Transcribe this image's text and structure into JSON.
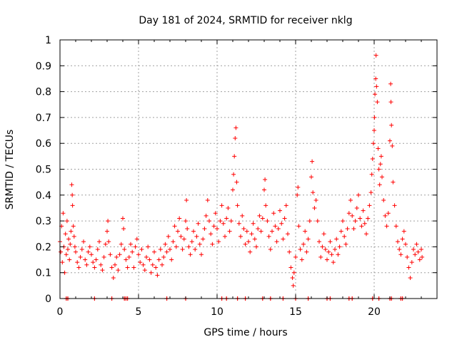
{
  "chart_data": {
    "type": "scatter",
    "title": "Day 181 of 2024, SRMTID for receiver nklg",
    "xlabel": "GPS time / hours",
    "ylabel": "SRMTID / TECUs",
    "xlim": [
      0,
      24
    ],
    "ylim": [
      0,
      1
    ],
    "xticks": [
      0,
      5,
      10,
      15,
      20
    ],
    "xtick_labels": [
      "0",
      "5",
      "10",
      "15",
      "20"
    ],
    "yticks": [
      0,
      0.1,
      0.2,
      0.3,
      0.4,
      0.5,
      0.6,
      0.7,
      0.8,
      0.9,
      1
    ],
    "ytick_labels": [
      "0",
      "0.1",
      "0.2",
      "0.3",
      "0.4",
      "0.5",
      "0.6",
      "0.7",
      "0.8",
      "0.9",
      "1"
    ],
    "grid": true,
    "marker": "+",
    "color": "#ff0000",
    "series": [
      {
        "name": "SRMTID",
        "points": [
          [
            0.0,
            0.22
          ],
          [
            0.05,
            0.18
          ],
          [
            0.1,
            0.28
          ],
          [
            0.15,
            0.14
          ],
          [
            0.2,
            0.33
          ],
          [
            0.25,
            0.2
          ],
          [
            0.3,
            0.1
          ],
          [
            0.35,
            0.25
          ],
          [
            0.4,
            0.17
          ],
          [
            0.45,
            0.3
          ],
          [
            0.5,
            0.19
          ],
          [
            0.55,
            0.23
          ],
          [
            0.6,
            0.15
          ],
          [
            0.65,
            0.21
          ],
          [
            0.7,
            0.26
          ],
          [
            0.75,
            0.44
          ],
          [
            0.78,
            0.4
          ],
          [
            0.8,
            0.36
          ],
          [
            0.85,
            0.28
          ],
          [
            0.9,
            0.24
          ],
          [
            0.95,
            0.2
          ],
          [
            1.0,
            0.18
          ],
          [
            1.1,
            0.14
          ],
          [
            1.2,
            0.12
          ],
          [
            1.3,
            0.16
          ],
          [
            1.4,
            0.19
          ],
          [
            1.5,
            0.22
          ],
          [
            1.6,
            0.15
          ],
          [
            1.7,
            0.13
          ],
          [
            1.8,
            0.18
          ],
          [
            1.9,
            0.2
          ],
          [
            2.0,
            0.17
          ],
          [
            2.1,
            0.14
          ],
          [
            2.2,
            0.12
          ],
          [
            2.3,
            0.15
          ],
          [
            2.4,
            0.19
          ],
          [
            2.5,
            0.22
          ],
          [
            2.6,
            0.13
          ],
          [
            2.7,
            0.11
          ],
          [
            2.8,
            0.16
          ],
          [
            2.9,
            0.21
          ],
          [
            3.0,
            0.26
          ],
          [
            3.05,
            0.3
          ],
          [
            3.1,
            0.22
          ],
          [
            3.2,
            0.17
          ],
          [
            3.3,
            0.12
          ],
          [
            3.4,
            0.08
          ],
          [
            3.5,
            0.13
          ],
          [
            3.6,
            0.16
          ],
          [
            3.7,
            0.11
          ],
          [
            3.8,
            0.17
          ],
          [
            3.9,
            0.21
          ],
          [
            4.0,
            0.31
          ],
          [
            4.05,
            0.27
          ],
          [
            4.1,
            0.19
          ],
          [
            4.2,
            0.15
          ],
          [
            4.3,
            0.12
          ],
          [
            4.4,
            0.16
          ],
          [
            4.5,
            0.21
          ],
          [
            4.6,
            0.18
          ],
          [
            4.7,
            0.12
          ],
          [
            4.8,
            0.2
          ],
          [
            4.9,
            0.23
          ],
          [
            5.0,
            0.17
          ],
          [
            5.1,
            0.14
          ],
          [
            5.2,
            0.19
          ],
          [
            5.3,
            0.13
          ],
          [
            5.4,
            0.11
          ],
          [
            5.5,
            0.16
          ],
          [
            5.6,
            0.2
          ],
          [
            5.7,
            0.15
          ],
          [
            5.8,
            0.1
          ],
          [
            5.9,
            0.13
          ],
          [
            6.0,
            0.18
          ],
          [
            6.1,
            0.12
          ],
          [
            6.2,
            0.09
          ],
          [
            6.3,
            0.15
          ],
          [
            6.4,
            0.19
          ],
          [
            6.5,
            0.13
          ],
          [
            6.6,
            0.16
          ],
          [
            6.7,
            0.21
          ],
          [
            6.8,
            0.18
          ],
          [
            6.9,
            0.24
          ],
          [
            7.0,
            0.19
          ],
          [
            7.1,
            0.15
          ],
          [
            7.2,
            0.22
          ],
          [
            7.3,
            0.28
          ],
          [
            7.4,
            0.2
          ],
          [
            7.5,
            0.26
          ],
          [
            7.6,
            0.31
          ],
          [
            7.7,
            0.24
          ],
          [
            7.8,
            0.19
          ],
          [
            7.9,
            0.23
          ],
          [
            8.0,
            0.3
          ],
          [
            8.05,
            0.38
          ],
          [
            8.1,
            0.27
          ],
          [
            8.2,
            0.2
          ],
          [
            8.3,
            0.17
          ],
          [
            8.4,
            0.22
          ],
          [
            8.5,
            0.26
          ],
          [
            8.6,
            0.19
          ],
          [
            8.7,
            0.24
          ],
          [
            8.8,
            0.29
          ],
          [
            8.9,
            0.21
          ],
          [
            9.0,
            0.17
          ],
          [
            9.1,
            0.23
          ],
          [
            9.2,
            0.27
          ],
          [
            9.3,
            0.32
          ],
          [
            9.4,
            0.38
          ],
          [
            9.5,
            0.3
          ],
          [
            9.6,
            0.25
          ],
          [
            9.7,
            0.21
          ],
          [
            9.8,
            0.28
          ],
          [
            9.9,
            0.33
          ],
          [
            10.0,
            0.27
          ],
          [
            10.1,
            0.22
          ],
          [
            10.2,
            0.3
          ],
          [
            10.3,
            0.36
          ],
          [
            10.4,
            0.29
          ],
          [
            10.5,
            0.24
          ],
          [
            10.6,
            0.31
          ],
          [
            10.7,
            0.35
          ],
          [
            10.8,
            0.26
          ],
          [
            10.9,
            0.3
          ],
          [
            11.0,
            0.42
          ],
          [
            11.05,
            0.48
          ],
          [
            11.1,
            0.55
          ],
          [
            11.15,
            0.62
          ],
          [
            11.2,
            0.66
          ],
          [
            11.25,
            0.45
          ],
          [
            11.3,
            0.36
          ],
          [
            11.4,
            0.29
          ],
          [
            11.5,
            0.24
          ],
          [
            11.6,
            0.32
          ],
          [
            11.7,
            0.27
          ],
          [
            11.8,
            0.21
          ],
          [
            11.9,
            0.26
          ],
          [
            12.0,
            0.22
          ],
          [
            12.1,
            0.18
          ],
          [
            12.2,
            0.25
          ],
          [
            12.3,
            0.29
          ],
          [
            12.4,
            0.23
          ],
          [
            12.5,
            0.2
          ],
          [
            12.6,
            0.27
          ],
          [
            12.7,
            0.32
          ],
          [
            12.8,
            0.26
          ],
          [
            12.9,
            0.31
          ],
          [
            13.0,
            0.42
          ],
          [
            13.05,
            0.46
          ],
          [
            13.1,
            0.36
          ],
          [
            13.2,
            0.3
          ],
          [
            13.3,
            0.24
          ],
          [
            13.4,
            0.19
          ],
          [
            13.5,
            0.26
          ],
          [
            13.6,
            0.33
          ],
          [
            13.7,
            0.28
          ],
          [
            13.8,
            0.22
          ],
          [
            13.9,
            0.27
          ],
          [
            14.0,
            0.34
          ],
          [
            14.1,
            0.29
          ],
          [
            14.2,
            0.23
          ],
          [
            14.3,
            0.31
          ],
          [
            14.4,
            0.36
          ],
          [
            14.5,
            0.25
          ],
          [
            14.6,
            0.18
          ],
          [
            14.7,
            0.12
          ],
          [
            14.8,
            0.08
          ],
          [
            14.85,
            0.05
          ],
          [
            14.9,
            0.1
          ],
          [
            15.0,
            0.16
          ],
          [
            15.1,
            0.4
          ],
          [
            15.15,
            0.43
          ],
          [
            15.2,
            0.28
          ],
          [
            15.3,
            0.19
          ],
          [
            15.4,
            0.15
          ],
          [
            15.5,
            0.21
          ],
          [
            15.6,
            0.26
          ],
          [
            15.7,
            0.18
          ],
          [
            15.8,
            0.23
          ],
          [
            15.9,
            0.3
          ],
          [
            16.0,
            0.47
          ],
          [
            16.05,
            0.53
          ],
          [
            16.1,
            0.41
          ],
          [
            16.2,
            0.35
          ],
          [
            16.3,
            0.38
          ],
          [
            16.4,
            0.3
          ],
          [
            16.5,
            0.22
          ],
          [
            16.6,
            0.16
          ],
          [
            16.7,
            0.2
          ],
          [
            16.8,
            0.25
          ],
          [
            16.9,
            0.19
          ],
          [
            17.0,
            0.15
          ],
          [
            17.1,
            0.18
          ],
          [
            17.2,
            0.22
          ],
          [
            17.3,
            0.17
          ],
          [
            17.4,
            0.14
          ],
          [
            17.5,
            0.19
          ],
          [
            17.6,
            0.23
          ],
          [
            17.7,
            0.17
          ],
          [
            17.8,
            0.2
          ],
          [
            17.9,
            0.26
          ],
          [
            18.0,
            0.3
          ],
          [
            18.1,
            0.24
          ],
          [
            18.2,
            0.21
          ],
          [
            18.3,
            0.27
          ],
          [
            18.4,
            0.33
          ],
          [
            18.5,
            0.38
          ],
          [
            18.6,
            0.32
          ],
          [
            18.7,
            0.27
          ],
          [
            18.8,
            0.3
          ],
          [
            18.9,
            0.35
          ],
          [
            19.0,
            0.4
          ],
          [
            19.1,
            0.31
          ],
          [
            19.2,
            0.28
          ],
          [
            19.3,
            0.34
          ],
          [
            19.4,
            0.29
          ],
          [
            19.5,
            0.25
          ],
          [
            19.6,
            0.31
          ],
          [
            19.7,
            0.36
          ],
          [
            19.8,
            0.41
          ],
          [
            19.85,
            0.48
          ],
          [
            19.9,
            0.54
          ],
          [
            19.95,
            0.6
          ],
          [
            20.0,
            0.65
          ],
          [
            20.02,
            0.7
          ],
          [
            20.05,
            0.79
          ],
          [
            20.1,
            0.85
          ],
          [
            20.12,
            0.94
          ],
          [
            20.15,
            0.82
          ],
          [
            20.2,
            0.76
          ],
          [
            20.25,
            0.58
          ],
          [
            20.3,
            0.5
          ],
          [
            20.35,
            0.44
          ],
          [
            20.4,
            0.52
          ],
          [
            20.45,
            0.55
          ],
          [
            20.5,
            0.47
          ],
          [
            20.6,
            0.38
          ],
          [
            20.7,
            0.32
          ],
          [
            20.8,
            0.28
          ],
          [
            20.9,
            0.33
          ],
          [
            21.0,
            0.61
          ],
          [
            21.05,
            0.83
          ],
          [
            21.07,
            0.76
          ],
          [
            21.1,
            0.67
          ],
          [
            21.15,
            0.59
          ],
          [
            21.2,
            0.45
          ],
          [
            21.3,
            0.36
          ],
          [
            21.4,
            0.28
          ],
          [
            21.5,
            0.22
          ],
          [
            21.6,
            0.19
          ],
          [
            21.7,
            0.17
          ],
          [
            21.8,
            0.23
          ],
          [
            21.9,
            0.26
          ],
          [
            22.0,
            0.21
          ],
          [
            22.1,
            0.16
          ],
          [
            22.2,
            0.12
          ],
          [
            22.3,
            0.08
          ],
          [
            22.4,
            0.14
          ],
          [
            22.5,
            0.19
          ],
          [
            22.6,
            0.17
          ],
          [
            22.7,
            0.21
          ],
          [
            22.8,
            0.18
          ],
          [
            22.9,
            0.15
          ],
          [
            23.0,
            0.19
          ],
          [
            23.05,
            0.16
          ]
        ]
      }
    ],
    "baseline_points": [
      0.4,
      0.5,
      2.2,
      3.3,
      4.1,
      4.2,
      4.3,
      6.8,
      8.0,
      10.3,
      10.6,
      11.3,
      11.8,
      12.9,
      13.4,
      14.2,
      15.0,
      15.8,
      17.0,
      17.2,
      18.4,
      18.6,
      19.9,
      20.3,
      21.0,
      21.1,
      21.7,
      21.8
    ]
  }
}
